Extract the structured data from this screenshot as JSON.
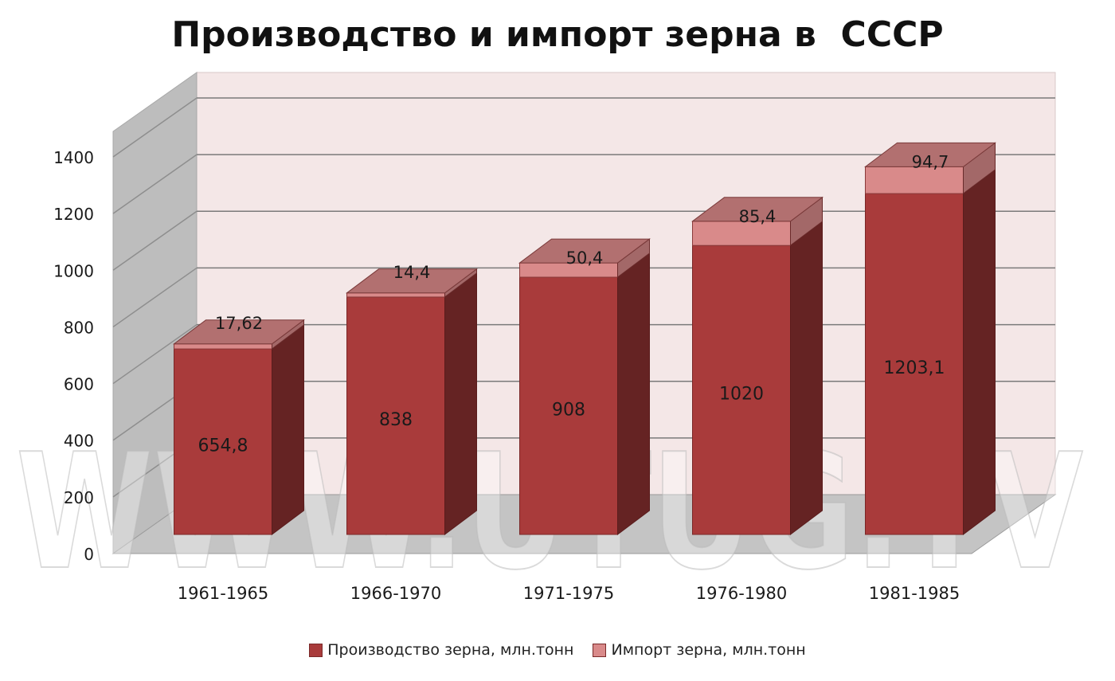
{
  "chart_data": {
    "type": "bar",
    "title": "Производство и импорт зерна в  СССР",
    "categories": [
      "1961-1965",
      "1966-1970",
      "1971-1975",
      "1976-1980",
      "1981-1985"
    ],
    "series": [
      {
        "name": "Производство зерна, млн.тонн",
        "values": [
          654.8,
          838,
          908,
          1020,
          1203.1
        ],
        "labels": [
          "654,8",
          "838",
          "908",
          "1020",
          "1203,1"
        ],
        "color": "#a93b3b"
      },
      {
        "name": "Импорт зерна, млн.тонн",
        "values": [
          17.62,
          14.4,
          50.4,
          85.4,
          94.7
        ],
        "labels": [
          "17,62",
          "14,4",
          "50,4",
          "85,4",
          "94,7"
        ],
        "color": "#d98a8a"
      }
    ],
    "stacked": true,
    "y_ticks": [
      "0",
      "200",
      "400",
      "600",
      "800",
      "1000",
      "1200",
      "1400"
    ],
    "ylim": [
      0,
      1400
    ],
    "grid": true,
    "legend": "bottom"
  },
  "watermark": "WWW.UTUG.TV"
}
